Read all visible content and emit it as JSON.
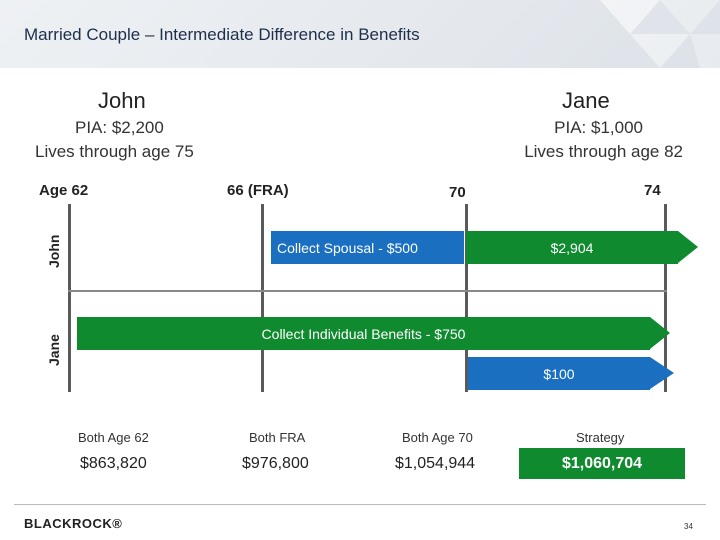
{
  "title": "Married Couple – Intermediate Difference in Benefits",
  "john": {
    "name": "John",
    "pia": "PIA: $2,200",
    "lives": "Lives through age 75"
  },
  "jane": {
    "name": "Jane",
    "pia": "PIA: $1,000",
    "lives": "Lives through age 82"
  },
  "ages": {
    "a62": "Age 62",
    "fra": "66 (FRA)",
    "a70": "70",
    "a74": "74"
  },
  "rows": {
    "john": "John",
    "jane": "Jane"
  },
  "bars": {
    "spousal": "Collect Spousal - $500",
    "john_benefit": "$2,904",
    "individual": "Collect Individual Benefits - $750",
    "jane_increase": "$100"
  },
  "scenarios": [
    {
      "label": "Both Age 62",
      "amount": "$863,820"
    },
    {
      "label": "Both FRA",
      "amount": "$976,800"
    },
    {
      "label": "Both Age 70",
      "amount": "$1,054,944"
    },
    {
      "label": "Strategy",
      "amount": "$1,060,704"
    }
  ],
  "footer": {
    "logo": "BLACKROCK®",
    "page": "34"
  },
  "colors": {
    "green": "#0f8a2e",
    "blue": "#1a6fc0",
    "title": "#1d2f4a"
  }
}
